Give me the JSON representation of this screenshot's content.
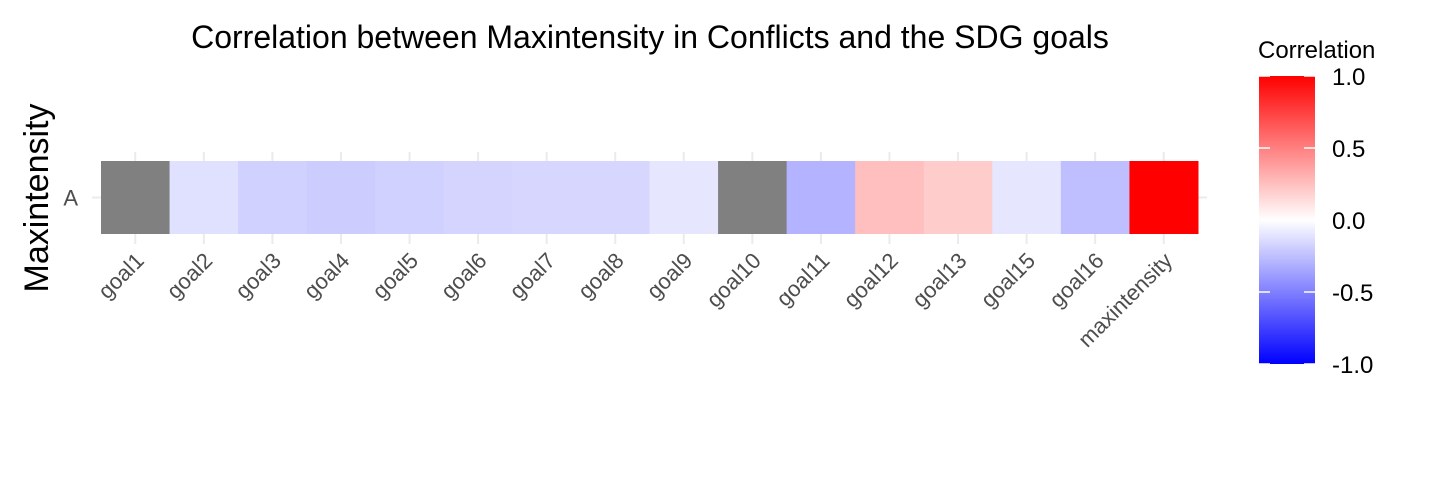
{
  "chart_data": {
    "type": "heatmap",
    "title": "Correlation between Maxintensity in Conflicts and the SDG goals",
    "ylabel": "Maxintensity",
    "xlabel": "",
    "y_categories": [
      "A"
    ],
    "x_categories": [
      "goal1",
      "goal2",
      "goal3",
      "goal4",
      "goal5",
      "goal6",
      "goal7",
      "goal8",
      "goal9",
      "goal10",
      "goal11",
      "goal12",
      "goal13",
      "goal15",
      "goal16",
      "maxintensity"
    ],
    "values": [
      null,
      -0.12,
      -0.18,
      -0.2,
      -0.18,
      -0.17,
      -0.16,
      -0.16,
      -0.1,
      null,
      -0.3,
      0.25,
      0.2,
      -0.1,
      -0.25,
      1.0
    ],
    "na_color": "#808080",
    "legend": {
      "title": "Correlation",
      "position": "right",
      "limits": [
        -1,
        1
      ],
      "breaks": [
        1.0,
        0.5,
        0.0,
        -0.5,
        -1.0
      ],
      "break_labels": [
        "1.0",
        "0.5",
        "0.0",
        "-0.5",
        "-1.0"
      ],
      "low_color": "#0000ff",
      "mid_color": "#ffffff",
      "high_color": "#ff0000"
    },
    "grid": true
  }
}
